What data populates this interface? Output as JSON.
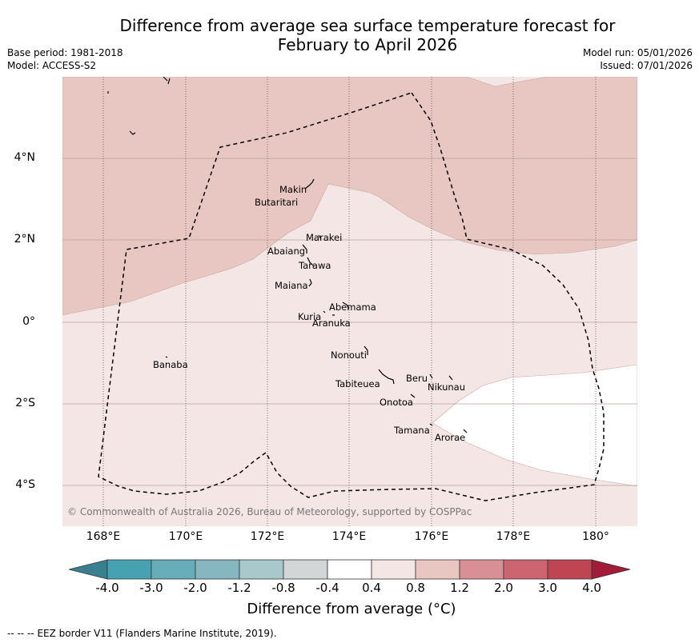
{
  "header": {
    "title_line1": "Difference from average sea surface temperature forecast for",
    "title_line2": "February to April 2026",
    "base_period": "Base period: 1981-2018",
    "model": "Model: ACCESS-S2",
    "model_run": "Model run: 05/01/2026",
    "issued": "Issued: 07/01/2026"
  },
  "map": {
    "x_ticks": [
      "168°E",
      "170°E",
      "172°E",
      "174°E",
      "176°E",
      "178°E",
      "180°"
    ],
    "y_ticks": [
      "4°N",
      "2°N",
      "0°",
      "2°S",
      "4°S"
    ],
    "copyright": "© Commonwealth of Australia 2026, Bureau of Meteorology, supported by COSPPac",
    "islands": [
      {
        "name": "Makin"
      },
      {
        "name": "Butaritari"
      },
      {
        "name": "Marakei"
      },
      {
        "name": "Abaiang"
      },
      {
        "name": "Tarawa"
      },
      {
        "name": "Maiana"
      },
      {
        "name": "Abemama"
      },
      {
        "name": "Kuria"
      },
      {
        "name": "Aranuka"
      },
      {
        "name": "Banaba"
      },
      {
        "name": "Nonouti"
      },
      {
        "name": "Beru"
      },
      {
        "name": "Tabiteuea"
      },
      {
        "name": "Nikunau"
      },
      {
        "name": "Onotoa"
      },
      {
        "name": "Tamana"
      },
      {
        "name": "Arorae"
      }
    ]
  },
  "colorbar": {
    "tick_labels": [
      "-4.0",
      "-3.0",
      "-2.0",
      "-1.2",
      "-0.8",
      "-0.4",
      "0.4",
      "0.8",
      "1.2",
      "2.0",
      "3.0",
      "4.0"
    ],
    "colors": [
      "#3a7f8f",
      "#46a2b1",
      "#67adb9",
      "#86b6c0",
      "#a8c8cc",
      "#d2d6d7",
      "#ffffff",
      "#f4e6e5",
      "#e8c6c2",
      "#d98f96",
      "#cd6570",
      "#c04553",
      "#a21c3a"
    ],
    "title": "Difference from average (°C)"
  },
  "footer": {
    "legend_dashes": "--  --  --",
    "legend_text": "EEZ border V11 (Flanders Marine Institute, 2019)."
  }
}
